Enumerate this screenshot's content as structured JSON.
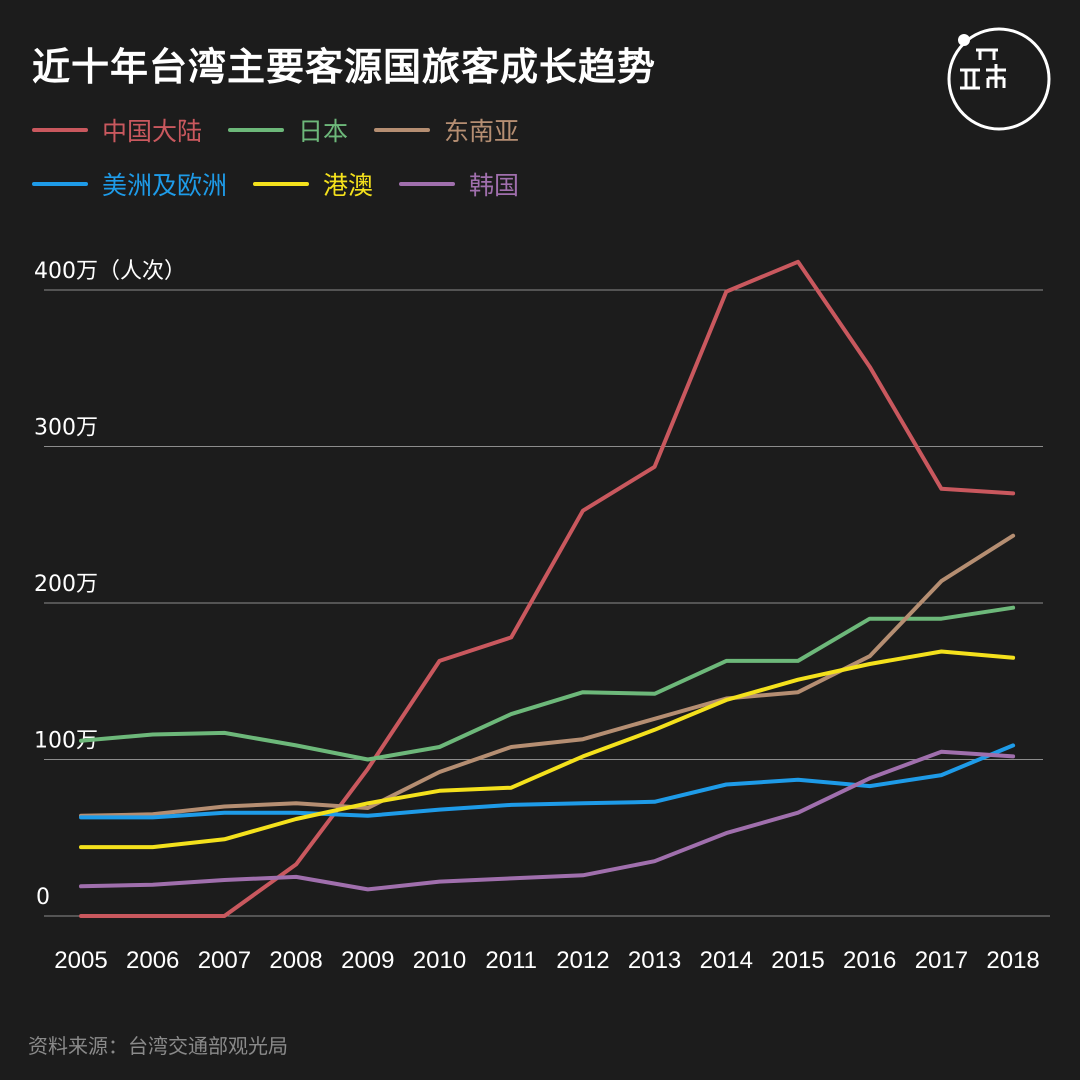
{
  "title": "近十年台湾主要客源国旅客成长趋势",
  "source": "资料来源：台湾交通部观光局",
  "colors": {
    "background": "#1c1c1c",
    "grid": "#8c8c8c",
    "text": "#ffffff",
    "source_text": "#8a8a8a"
  },
  "chart_data": {
    "type": "line",
    "x": [
      "2005",
      "2006",
      "2007",
      "2008",
      "2009",
      "2010",
      "2011",
      "2012",
      "2013",
      "2014",
      "2015",
      "2016",
      "2017",
      "2018"
    ],
    "ylim": [
      0,
      400
    ],
    "yticks": [
      {
        "value": 0,
        "label": "0"
      },
      {
        "value": 100,
        "label": "100万"
      },
      {
        "value": 200,
        "label": "200万"
      },
      {
        "value": 300,
        "label": "300万"
      },
      {
        "value": 400,
        "label": "400万（人次）"
      }
    ],
    "grid": "horizontal",
    "legend_position": "top-left",
    "series": [
      {
        "name": "中国大陆",
        "color": "#c9585e",
        "values": [
          0,
          0,
          0,
          33,
          94,
          163,
          178,
          259,
          287,
          399,
          418,
          351,
          273,
          270
        ]
      },
      {
        "name": "日本",
        "color": "#6db87a",
        "values": [
          112,
          116,
          117,
          109,
          100,
          108,
          129,
          143,
          142,
          163,
          163,
          190,
          190,
          197
        ]
      },
      {
        "name": "东南亚",
        "color": "#b58e72",
        "values": [
          64,
          65,
          70,
          72,
          69,
          92,
          108,
          113,
          126,
          139,
          143,
          166,
          214,
          243
        ]
      },
      {
        "name": "美洲及欧洲",
        "color": "#1e9be8",
        "values": [
          63,
          63,
          66,
          66,
          64,
          68,
          71,
          72,
          73,
          84,
          87,
          83,
          90,
          109
        ]
      },
      {
        "name": "港澳",
        "color": "#f4e11c",
        "values": [
          44,
          44,
          49,
          62,
          72,
          80,
          82,
          102,
          119,
          138,
          151,
          161,
          169,
          165
        ]
      },
      {
        "name": "韩国",
        "color": "#a06fad",
        "values": [
          19,
          20,
          23,
          25,
          17,
          22,
          24,
          26,
          35,
          53,
          66,
          88,
          105,
          102
        ]
      }
    ]
  }
}
